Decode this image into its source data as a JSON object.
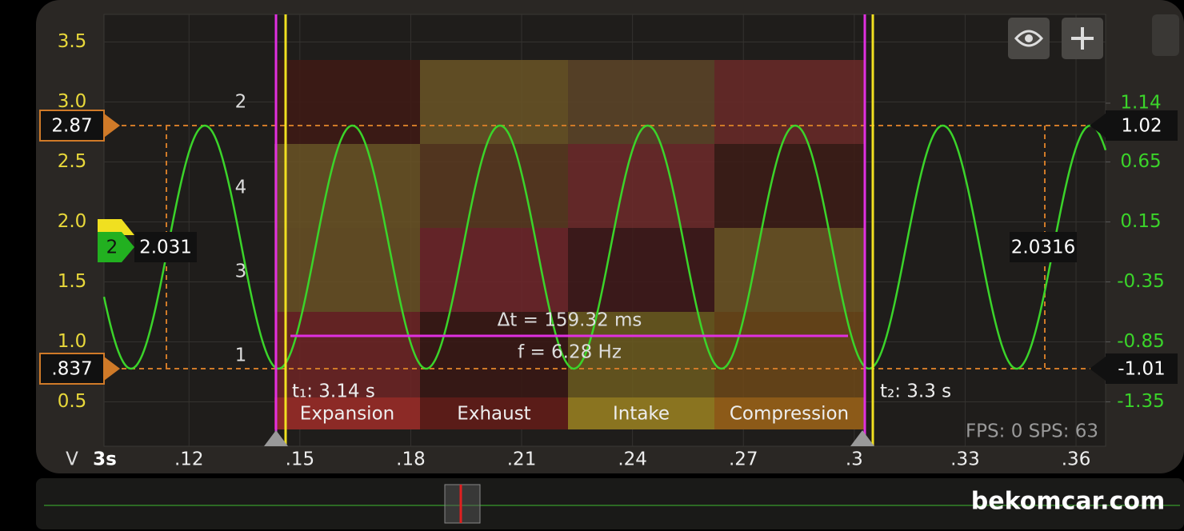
{
  "axes": {
    "left": {
      "unit": "V",
      "ylim": [
        0.13,
        3.73
      ],
      "yticks": [
        3.5,
        {
          "value": 3.0,
          "label": "3.0"
        },
        2.5,
        {
          "value": 2.0,
          "label": "2.0"
        },
        1.5,
        {
          "value": 1.0,
          "label": "1.0"
        },
        0.5
      ]
    },
    "right": {
      "ylim": [
        -1.72,
        1.88
      ],
      "yticks": [
        1.14,
        0.65,
        0.15,
        -0.35,
        -0.85,
        -1.35
      ]
    },
    "time": {
      "start_label": "3s",
      "xlim": [
        3.097,
        3.368
      ],
      "xticks": [
        {
          "value": 3.12,
          "label": ".12"
        },
        {
          "value": 3.15,
          "label": ".15"
        },
        {
          "value": 3.18,
          "label": ".18"
        },
        {
          "value": 3.21,
          "label": ".21"
        },
        {
          "value": 3.24,
          "label": ".24"
        },
        {
          "value": 3.27,
          "label": ".27"
        },
        {
          "value": 3.3,
          "label": ".3"
        },
        {
          "value": 3.33,
          "label": ".33"
        },
        {
          "value": 3.36,
          "label": ".36"
        }
      ]
    }
  },
  "readouts": {
    "left_high": "2.87",
    "left_low": ".837",
    "right_high": "1.02",
    "right_low": "-1.01",
    "channel": "2",
    "channel_left": "2.031",
    "channel_right": "2.0316"
  },
  "cursors": {
    "t1": "t₁: 3.14 s",
    "t2": "t₂: 3.3 s"
  },
  "measurement": {
    "delta_t": "Δt = 159.32 ms",
    "frequency": "f = 6.28 Hz"
  },
  "cylinder_map": {
    "row_labels": [
      "2",
      "4",
      "3",
      "1"
    ],
    "cell_colors": [
      [
        "#3f1a14",
        "#6b5526",
        "#5e4528",
        "#6b2a28"
      ],
      [
        "#6b5324",
        "#5a3a20",
        "#6e2a2a",
        "#3d1c16"
      ],
      [
        "#6a5125",
        "#70262a",
        "#40191a",
        "#6d5524"
      ],
      [
        "#6e2424",
        "#3a1814",
        "#6c5a1e",
        "#6d4818"
      ]
    ],
    "strokes": [
      {
        "name": "Expansion",
        "color": "#8c2a26"
      },
      {
        "name": "Exhaust",
        "color": "#5a1c18"
      },
      {
        "name": "Intake",
        "color": "#8a7420"
      },
      {
        "name": "Compression",
        "color": "#8c5a18"
      }
    ]
  },
  "status": "FPS: 0  SPS: 63",
  "watermark": "bekomcar.com"
}
